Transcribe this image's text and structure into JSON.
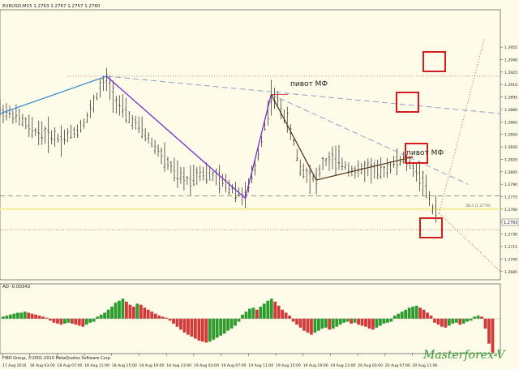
{
  "header": {
    "symbol_line": "EURUSD,M15  1.2763 1.2767 1.2757 1.2760",
    "ao_line": "AO -0.00342",
    "copyright": "FIBO Group, ©2001-2010 MetaQuotes Software Corp.",
    "watermark": "Masterforex-V"
  },
  "annotations": {
    "pivot_label": "пивот МФ",
    "fib_label": "38.2 (1.2776)",
    "current_price": "1.2760"
  },
  "colors": {
    "background": "#fefbe9",
    "bars": "#222222",
    "wave_blue": "#3a8fd0",
    "wave_purple": "#7a2bc9",
    "wave_brown": "#5a3d1f",
    "trendline": "#8ea0c8",
    "fib_dashed": "#7a7a60",
    "support_red": "#c34040",
    "current_price_line": "#f5f0a0",
    "box_red": "#d21e1e",
    "ao_up": "#2e9b2e",
    "ao_down": "#d23a3a"
  },
  "chart_data": [
    {
      "type": "ohlc",
      "title": "EURUSD,M15",
      "ylim": [
        1.2675,
        1.3
      ],
      "y_ticks": [
        "1.2955",
        "1.2940",
        "1.2925",
        "1.2910",
        "1.2895",
        "1.2880",
        "1.2865",
        "1.2850",
        "1.2835",
        "1.2820",
        "1.2805",
        "1.2790",
        "1.2775",
        "1.2760",
        "1.2745",
        "1.2730",
        "1.2715",
        "1.2700",
        "1.2685"
      ],
      "x_ticks": [
        "17 Aug 2010",
        "18 Aug 03:00",
        "18 Aug 07:00",
        "18 Aug 11:00",
        "18 Aug 15:00",
        "18 Aug 19:00",
        "18 Aug 23:00",
        "19 Aug 03:00",
        "19 Aug 07:00",
        "19 Aug 11:00",
        "19 Aug 15:00",
        "19 Aug 19:00",
        "19 Aug 23:00",
        "20 Aug 03:00",
        "20 Aug 07:00",
        "20 Aug 11:00"
      ],
      "close_path": [
        [
          0,
          1.288
        ],
        [
          6,
          1.287
        ],
        [
          10,
          1.2855
        ],
        [
          14,
          1.285
        ],
        [
          19,
          1.2845
        ],
        [
          24,
          1.2855
        ],
        [
          27,
          1.287
        ],
        [
          31,
          1.2905
        ],
        [
          33,
          1.2915
        ],
        [
          36,
          1.289
        ],
        [
          40,
          1.287
        ],
        [
          44,
          1.2855
        ],
        [
          48,
          1.2835
        ],
        [
          52,
          1.2815
        ],
        [
          55,
          1.28
        ],
        [
          58,
          1.2795
        ],
        [
          62,
          1.2805
        ],
        [
          66,
          1.28
        ],
        [
          70,
          1.279
        ],
        [
          74,
          1.278
        ],
        [
          76,
          1.2775
        ],
        [
          79,
          1.281
        ],
        [
          82,
          1.286
        ],
        [
          84,
          1.2895
        ],
        [
          86,
          1.289
        ],
        [
          89,
          1.2865
        ],
        [
          91,
          1.284
        ],
        [
          93,
          1.281
        ],
        [
          96,
          1.28
        ],
        [
          98,
          1.2795
        ],
        [
          100,
          1.2815
        ],
        [
          103,
          1.282
        ],
        [
          106,
          1.2815
        ],
        [
          110,
          1.2805
        ],
        [
          114,
          1.281
        ],
        [
          118,
          1.2805
        ],
        [
          122,
          1.2815
        ],
        [
          125,
          1.282
        ],
        [
          128,
          1.281
        ],
        [
          131,
          1.2795
        ],
        [
          134,
          1.276
        ],
        [
          135,
          1.276
        ]
      ],
      "waves": [
        {
          "color": "blue",
          "points": [
            [
              0,
              1.2875
            ],
            [
              33,
              1.292
            ]
          ]
        },
        {
          "color": "purple",
          "points": [
            [
              33,
              1.292
            ],
            [
              76,
              1.2773
            ],
            [
              84,
              1.2898
            ]
          ]
        },
        {
          "color": "brown",
          "points": [
            [
              84,
              1.2898
            ],
            [
              98,
              1.2795
            ],
            [
              128,
              1.2823
            ]
          ]
        }
      ],
      "trendlines": [
        {
          "style": "dashed",
          "points": [
            [
              33,
              1.292
            ],
            [
              155,
              1.2875
            ]
          ]
        },
        {
          "style": "dashed",
          "points": [
            [
              84,
              1.2898
            ],
            [
              145,
              1.279
            ]
          ]
        }
      ],
      "levels": [
        {
          "price": 1.292,
          "style": "dotted-red"
        },
        {
          "price": 1.2776,
          "style": "dashed-grey",
          "label": "38.2 (1.2776)"
        },
        {
          "price": 1.276,
          "style": "solid-yellow"
        },
        {
          "price": 1.2735,
          "style": "dotted-red"
        }
      ],
      "projection": [
        {
          "points": [
            [
              136,
              1.2755
            ],
            [
              150,
              1.2965
            ]
          ]
        },
        {
          "points": [
            [
              136,
              1.2755
            ],
            [
              155,
              1.2685
            ]
          ]
        }
      ],
      "x_max": 155
    },
    {
      "type": "bar",
      "title": "AO -0.00342",
      "note": "Awesome Oscillator histogram",
      "values": [
        0.0002,
        0.0003,
        0.0004,
        0.0005,
        0.0006,
        0.0006,
        0.0007,
        0.0006,
        0.0005,
        0.0004,
        0.0003,
        0.0002,
        0.0001,
        -0.0002,
        -0.0004,
        -0.0005,
        -0.0006,
        -0.0005,
        -0.0004,
        -0.0005,
        -0.0006,
        -0.0007,
        -0.0008,
        -0.0006,
        -0.0004,
        -0.0003,
        0.0002,
        0.0004,
        0.0006,
        0.0009,
        0.0012,
        0.0016,
        0.0018,
        0.002,
        0.0017,
        0.0014,
        0.0012,
        0.0015,
        0.0014,
        0.0011,
        0.0009,
        0.0007,
        0.0005,
        0.0003,
        0.0002,
        0.0001,
        -0.0002,
        -0.0005,
        -0.0008,
        -0.0011,
        -0.0014,
        -0.0016,
        -0.0018,
        -0.002,
        -0.0022,
        -0.0023,
        -0.0024,
        -0.0023,
        -0.0021,
        -0.0019,
        -0.0017,
        -0.0015,
        -0.0012,
        -0.001,
        -0.0007,
        -0.0003,
        0.0004,
        0.0007,
        0.001,
        0.0011,
        0.0009,
        0.0012,
        0.0015,
        0.0018,
        0.002,
        0.0017,
        0.0013,
        0.0009,
        0.0006,
        0.0003,
        -0.0003,
        -0.0006,
        -0.0009,
        -0.0012,
        -0.0014,
        -0.0016,
        -0.0014,
        -0.0012,
        -0.001,
        -0.0009,
        -0.0011,
        -0.001,
        -0.0008,
        -0.0006,
        -0.0004,
        -0.0003,
        -0.0005,
        -0.0004,
        -0.0006,
        -0.0007,
        -0.0008,
        -0.001,
        -0.0011,
        -0.0009,
        -0.0007,
        -0.0005,
        -0.0004,
        -0.0003,
        0.0003,
        0.0005,
        0.0007,
        0.0009,
        0.0011,
        0.0012,
        0.0013,
        0.0011,
        0.0009,
        0.0006,
        0.0003,
        -0.0004,
        -0.0006,
        -0.0008,
        -0.0009,
        -0.0007,
        -0.0005,
        -0.0004,
        -0.0006,
        -0.0005,
        -0.0003,
        -0.0002,
        0.0002,
        0.0003,
        0.0002,
        -0.001,
        -0.0025,
        -0.0034
      ],
      "ylim": [
        -0.0035,
        0.003
      ]
    }
  ]
}
